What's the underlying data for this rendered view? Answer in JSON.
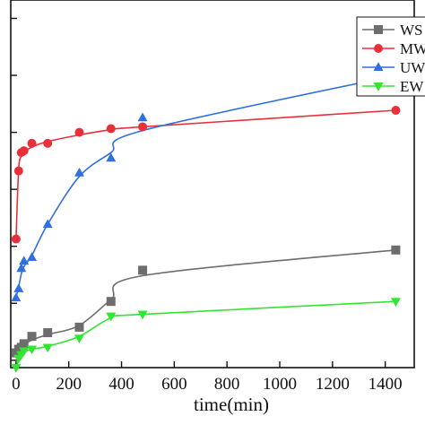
{
  "chart_data": {
    "type": "scatter",
    "title": "",
    "xlabel": "time(min)",
    "ylabel": "",
    "xlim": [
      -20,
      1510
    ],
    "ylim": [
      0,
      1
    ],
    "xticks": [
      0,
      200,
      400,
      600,
      800,
      1000,
      1200,
      1400
    ],
    "x_tick_labels": [
      "0",
      "200",
      "400",
      "600",
      "800",
      "1000",
      "1200",
      "1400"
    ],
    "grid": false,
    "legend_position": "top-right",
    "series": [
      {
        "name": "WS",
        "color": "#6d6d6d",
        "marker": "square",
        "x": [
          0,
          10,
          20,
          30,
          60,
          120,
          240,
          360,
          480,
          1440
        ],
        "y": [
          0.04,
          0.05,
          0.055,
          0.065,
          0.085,
          0.095,
          0.11,
          0.18,
          0.265,
          0.32
        ],
        "fit_y": [
          0.04,
          0.05,
          0.056,
          0.062,
          0.075,
          0.09,
          0.115,
          0.185,
          0.25,
          0.32
        ]
      },
      {
        "name": "MW",
        "color": "#e8303a",
        "marker": "circle",
        "x": [
          0,
          10,
          20,
          30,
          60,
          120,
          240,
          360,
          480,
          1440
        ],
        "y": [
          0.35,
          0.535,
          0.585,
          0.59,
          0.61,
          0.61,
          0.64,
          0.65,
          0.655,
          0.7
        ],
        "fit_y": [
          0.35,
          0.54,
          0.575,
          0.585,
          0.6,
          0.615,
          0.633,
          0.647,
          0.655,
          0.7
        ]
      },
      {
        "name": "UW",
        "color": "#2f6fe0",
        "marker": "triangle-up",
        "x": [
          0,
          10,
          20,
          30,
          60,
          120,
          240,
          360,
          480,
          1440
        ],
        "y": [
          0.19,
          0.215,
          0.27,
          0.29,
          0.3,
          0.39,
          0.53,
          0.57,
          0.68,
          0.795
        ],
        "fit_y": [
          0.19,
          0.22,
          0.255,
          0.275,
          0.305,
          0.39,
          0.52,
          0.585,
          0.645,
          0.795
        ]
      },
      {
        "name": "EW",
        "color": "#33e533",
        "marker": "triangle-down",
        "x": [
          0,
          10,
          20,
          30,
          60,
          120,
          240,
          360,
          480,
          1440
        ],
        "y": [
          0.0,
          0.025,
          0.035,
          0.045,
          0.05,
          0.055,
          0.08,
          0.14,
          0.145,
          0.18
        ],
        "fit_y": [
          0.0,
          0.022,
          0.034,
          0.042,
          0.05,
          0.058,
          0.085,
          0.135,
          0.145,
          0.18
        ]
      }
    ]
  }
}
